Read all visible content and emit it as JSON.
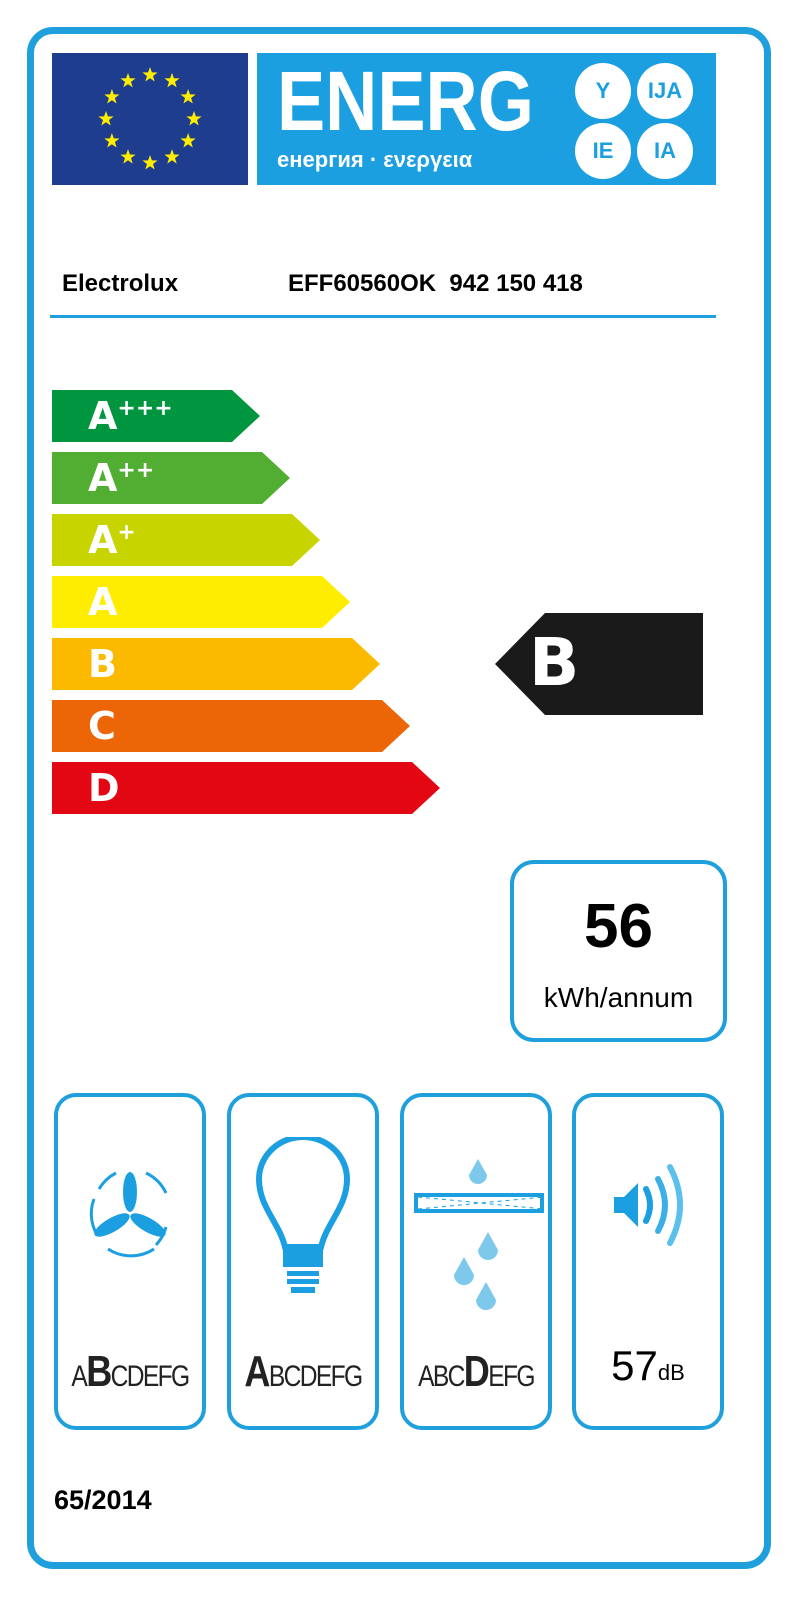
{
  "header": {
    "title": "ENERG",
    "subtitle": "енергия · ενεργεια",
    "language_suffixes": [
      "Y",
      "IJA",
      "IE",
      "IA"
    ],
    "flag": "eu-flag"
  },
  "product": {
    "brand": "Electrolux",
    "model": "EFF60560OK  942 150 418"
  },
  "scale": [
    {
      "letter": "A",
      "plus": "+++",
      "color": "#00963f"
    },
    {
      "letter": "A",
      "plus": "++",
      "color": "#52ae32"
    },
    {
      "letter": "A",
      "plus": "+",
      "color": "#c8d400"
    },
    {
      "letter": "A",
      "plus": "",
      "color": "#ffed00"
    },
    {
      "letter": "B",
      "plus": "",
      "color": "#fbba00"
    },
    {
      "letter": "C",
      "plus": "",
      "color": "#ec6608"
    },
    {
      "letter": "D",
      "plus": "",
      "color": "#e30613"
    }
  ],
  "rating": {
    "class": "B",
    "color": "#1a1a1a"
  },
  "consumption": {
    "value": "56",
    "unit": "kWh/annum"
  },
  "features": [
    {
      "icon": "fan-icon",
      "letters": "ABCDEFG",
      "selected": "B"
    },
    {
      "icon": "light-bulb-icon",
      "letters": "ABCDEFG",
      "selected": "A"
    },
    {
      "icon": "grease-filter-icon",
      "letters": "ABCDEFG",
      "selected": "D"
    }
  ],
  "noise": {
    "icon": "speaker-icon",
    "value": "57",
    "unit": "dB"
  },
  "regulation": "65/2014",
  "colors": {
    "frame": "#1fa0dc",
    "energy_blue": "#1b9fe0",
    "eu_blue": "#1e3d8f",
    "star": "#ffed00"
  }
}
